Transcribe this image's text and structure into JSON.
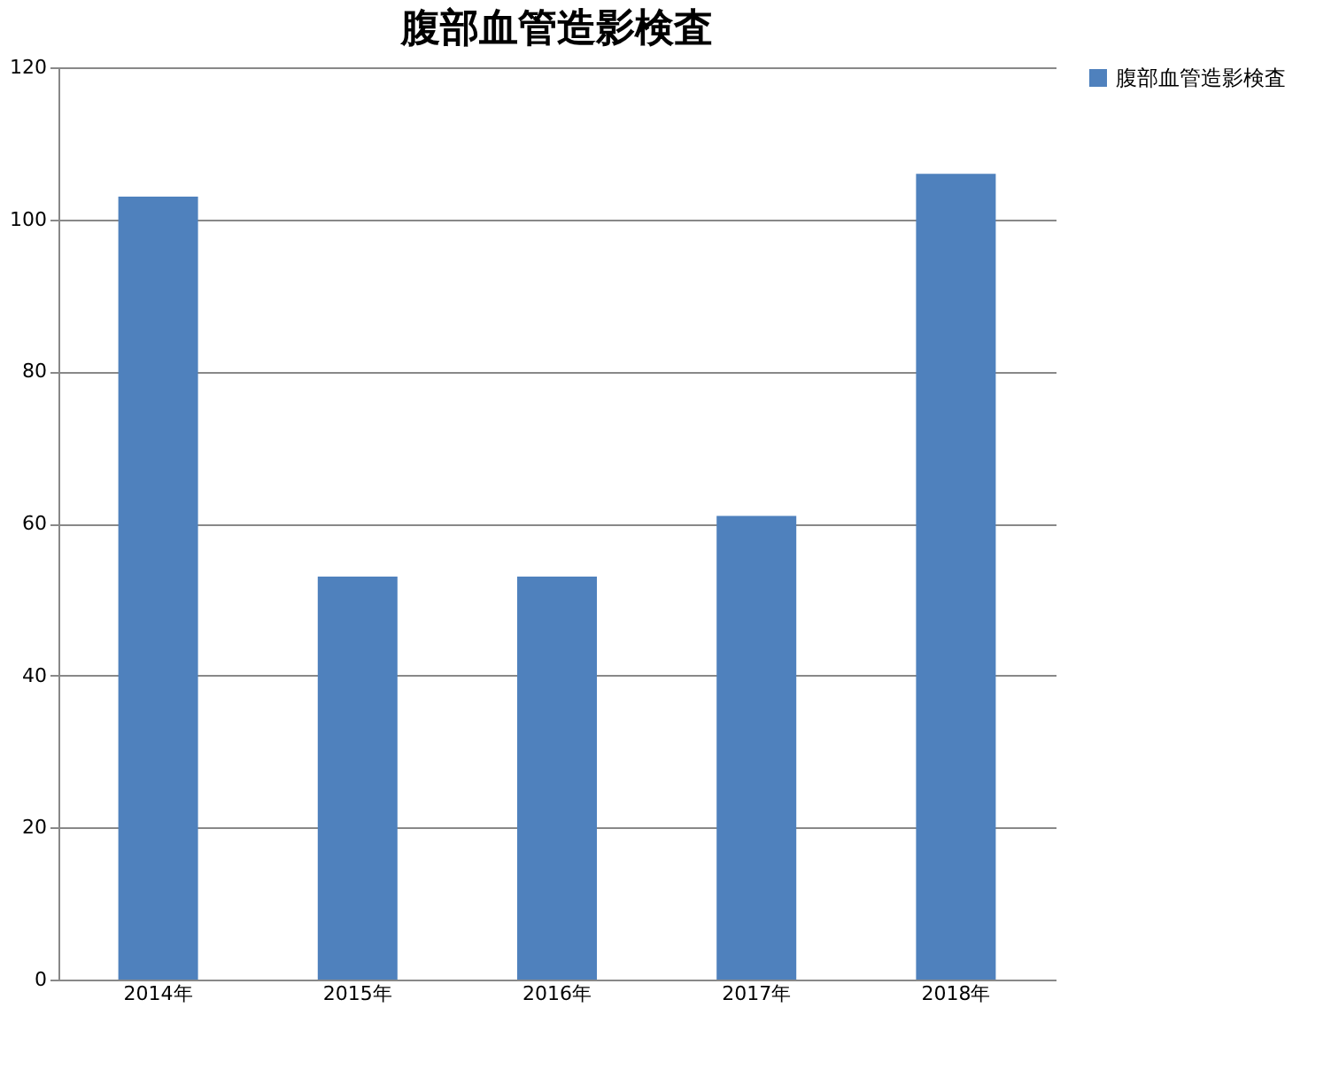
{
  "chart_data": {
    "type": "bar",
    "title": "腹部血管造影検査",
    "categories": [
      "2014年",
      "2015年",
      "2016年",
      "2017年",
      "2018年"
    ],
    "series": [
      {
        "name": "腹部血管造影検査",
        "color": "#4f81bd",
        "values": [
          103,
          53,
          53,
          61,
          106
        ]
      }
    ],
    "ylim": [
      0,
      120
    ],
    "yticks": [
      0,
      20,
      40,
      60,
      80,
      100,
      120
    ],
    "grid": "y",
    "legend": "right"
  }
}
